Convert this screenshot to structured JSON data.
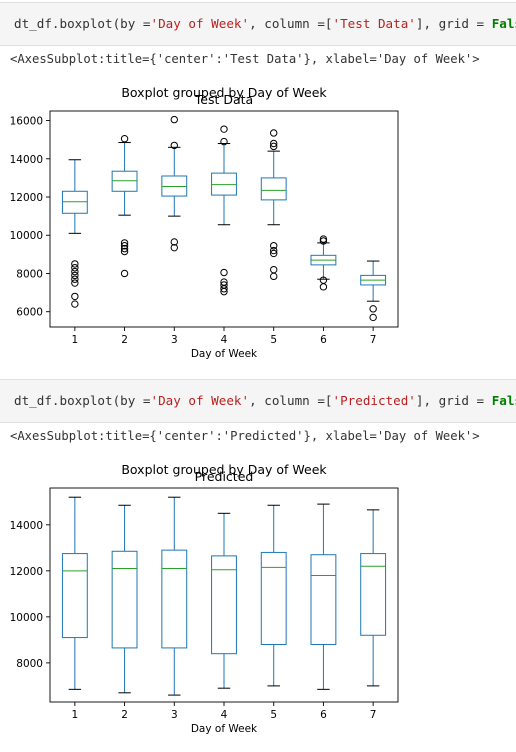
{
  "cells": [
    {
      "code": {
        "func": "dt_df.boxplot",
        "by_kw": "(by =",
        "by_val": "'Day of Week'",
        "col_kw": ", column =[",
        "col_val": "'Test Data'",
        "grid_kw": "], grid = ",
        "grid_val": "False",
        "close": ")"
      },
      "output": "<AxesSubplot:title={'center':'Test Data'}, xlabel='Day of Week'>"
    },
    {
      "code": {
        "func": "dt_df.boxplot",
        "by_kw": "(by =",
        "by_val": "'Day of Week'",
        "col_kw": ", column =[",
        "col_val": "'Predicted'",
        "grid_kw": "], grid = ",
        "grid_val": "False",
        "close": ")"
      },
      "output": "<AxesSubplot:title={'center':'Predicted'}, xlabel='Day of Week'>"
    }
  ],
  "colors": {
    "box": "#1f77b4",
    "median": "#2ca02c",
    "flier": "#000000"
  },
  "chart_data": [
    {
      "type": "box",
      "suptitle": "Boxplot grouped by Day of Week",
      "title": "Test Data",
      "xlabel": "Day of Week",
      "ylabel": "",
      "ylim": [
        5200,
        16500
      ],
      "yticks": [
        6000,
        8000,
        10000,
        12000,
        14000,
        16000
      ],
      "categories": [
        "1",
        "2",
        "3",
        "4",
        "5",
        "6",
        "7"
      ],
      "boxes": [
        {
          "whislo": 10100,
          "q1": 11150,
          "med": 11750,
          "q3": 12300,
          "whishi": 13950,
          "fliers": [
            8500,
            8300,
            8100,
            7900,
            7700,
            7500,
            6800,
            6400
          ]
        },
        {
          "whislo": 11050,
          "q1": 12300,
          "med": 12850,
          "q3": 13350,
          "whishi": 14850,
          "fliers": [
            15050,
            9600,
            9450,
            9300,
            9150,
            8000
          ]
        },
        {
          "whislo": 11000,
          "q1": 12050,
          "med": 12550,
          "q3": 13100,
          "whishi": 14600,
          "fliers": [
            16050,
            14700,
            9650,
            9350
          ]
        },
        {
          "whislo": 10550,
          "q1": 12100,
          "med": 12650,
          "q3": 13250,
          "whishi": 14800,
          "fliers": [
            15550,
            14900,
            8050,
            7550,
            7400,
            7200,
            7050
          ]
        },
        {
          "whislo": 10550,
          "q1": 11850,
          "med": 12350,
          "q3": 13000,
          "whishi": 14400,
          "fliers": [
            15350,
            14800,
            14650,
            9450,
            9200,
            9050,
            8200,
            7850
          ]
        },
        {
          "whislo": 7700,
          "q1": 8450,
          "med": 8700,
          "q3": 8950,
          "whishi": 9600,
          "fliers": [
            9800,
            9700,
            7650,
            7300
          ]
        },
        {
          "whislo": 6550,
          "q1": 7400,
          "med": 7650,
          "q3": 7900,
          "whishi": 8650,
          "fliers": [
            6150,
            5700
          ]
        }
      ]
    },
    {
      "type": "box",
      "suptitle": "Boxplot grouped by Day of Week",
      "title": "Predicted",
      "xlabel": "Day of Week",
      "ylabel": "",
      "ylim": [
        6300,
        15600
      ],
      "yticks": [
        8000,
        10000,
        12000,
        14000
      ],
      "categories": [
        "1",
        "2",
        "3",
        "4",
        "5",
        "6",
        "7"
      ],
      "boxes": [
        {
          "whislo": 6850,
          "q1": 9100,
          "med": 12000,
          "q3": 12750,
          "whishi": 15200,
          "fliers": []
        },
        {
          "whislo": 6700,
          "q1": 8650,
          "med": 12100,
          "q3": 12850,
          "whishi": 14850,
          "fliers": []
        },
        {
          "whislo": 6600,
          "q1": 8650,
          "med": 12100,
          "q3": 12900,
          "whishi": 15200,
          "fliers": []
        },
        {
          "whislo": 6900,
          "q1": 8400,
          "med": 12050,
          "q3": 12650,
          "whishi": 14500,
          "fliers": []
        },
        {
          "whislo": 7000,
          "q1": 8800,
          "med": 12150,
          "q3": 12800,
          "whishi": 14850,
          "fliers": []
        },
        {
          "whislo": 6850,
          "q1": 8800,
          "med": 11800,
          "q3": 12700,
          "whishi": 14900,
          "fliers": []
        },
        {
          "whislo": 7000,
          "q1": 9200,
          "med": 12200,
          "q3": 12750,
          "whishi": 14650,
          "fliers": []
        }
      ]
    }
  ]
}
